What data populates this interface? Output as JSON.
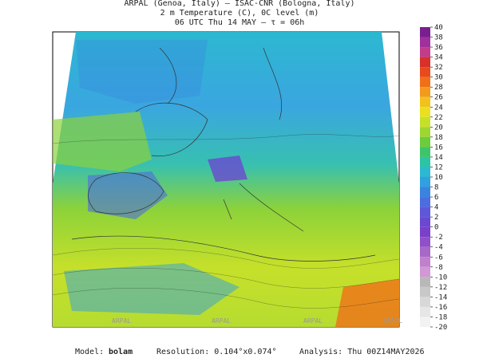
{
  "header": {
    "lines": [
      "ARPAL (Genoa, Italy)  —  ISAC-CNR (Bologna, Italy)",
      "2 m Temperature (C), 0C level (m)",
      "06 UTC Thu 14 MAY  —  τ = 06h"
    ]
  },
  "colorbar": {
    "ticks": [
      40,
      38,
      36,
      34,
      32,
      30,
      28,
      26,
      24,
      22,
      20,
      18,
      16,
      14,
      12,
      10,
      8,
      6,
      4,
      2,
      0,
      -2,
      -4,
      -6,
      -8,
      -10,
      -12,
      -14,
      -16,
      -18,
      -20
    ],
    "colors": [
      "#7a1f8f",
      "#a0309c",
      "#c23c8c",
      "#d8302a",
      "#e84a1c",
      "#f07018",
      "#f29a1c",
      "#f2c21c",
      "#e8e020",
      "#c6e02a",
      "#9ed632",
      "#6ccc3c",
      "#3ec46a",
      "#2cc4a4",
      "#2cb8d0",
      "#30a0e0",
      "#3a84e0",
      "#4c6ce0",
      "#5c58d8",
      "#6a48d0",
      "#7a40c8",
      "#9050c8",
      "#a868c8",
      "#c080cc",
      "#d098d4",
      "#b8b8b8",
      "#c8c8c8",
      "#d8d8d8",
      "#e6e6e6",
      "#f2f2f2"
    ]
  },
  "footer": {
    "model_label": "Model:",
    "model": "bolam",
    "resolution": "Resolution: 0.104°x0.074°",
    "analysis": "Analysis: Thu 00Z14MAY2026"
  },
  "watermarks": [
    "ARPAL",
    "ARPAL",
    "ARPAL",
    "ARPAL"
  ]
}
